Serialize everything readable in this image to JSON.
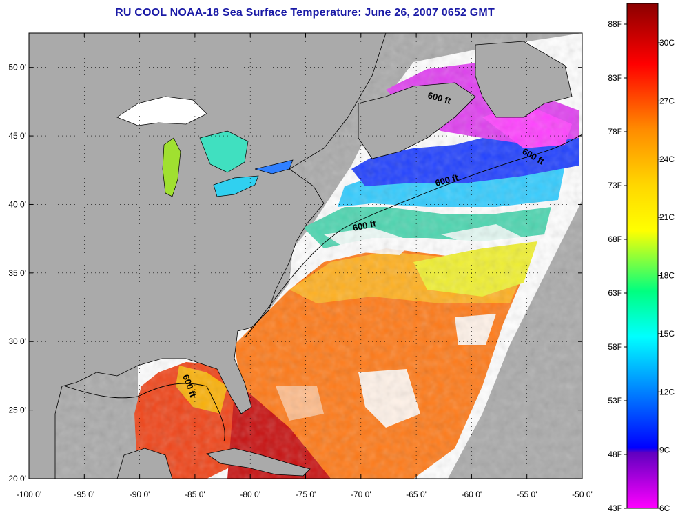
{
  "title": "RU COOL  NOAA-18  Sea Surface Temperature:  June 26, 2007 0652 GMT",
  "map": {
    "lon_range": [
      -100,
      -50
    ],
    "lat_range": [
      20,
      52.5
    ],
    "lon_ticks": [
      "-100 0'",
      "-95 0'",
      "-90 0'",
      "-85 0'",
      "-80 0'",
      "-75 0'",
      "-70 0'",
      "-65 0'",
      "-60 0'",
      "-55 0'",
      "-50 0'"
    ],
    "lat_ticks": [
      "20 0'",
      "25 0'",
      "30 0'",
      "35 0'",
      "40 0'",
      "45 0'",
      "50 0'"
    ],
    "contour_labels": [
      "600 ft",
      "600 ft",
      "600 ft",
      "600 ft",
      "600 ft"
    ],
    "colors": {
      "land": "#aaaaaa",
      "cloud": "#ffffff",
      "frame": "#000000"
    }
  },
  "colorbar": {
    "fahrenheit_labels": [
      "88F",
      "83F",
      "78F",
      "73F",
      "68F",
      "63F",
      "58F",
      "53F",
      "48F",
      "43F"
    ],
    "celsius_labels": [
      "30C",
      "27C",
      "24C",
      "21C",
      "18C",
      "15C",
      "12C",
      "9C",
      "6C"
    ],
    "colors_top_to_bottom": [
      "#8b0000",
      "#ff0000",
      "#ff8c00",
      "#ffd700",
      "#ffff00",
      "#00ff80",
      "#00ffff",
      "#0080ff",
      "#0000ff",
      "#8000c0",
      "#ff00ff"
    ]
  }
}
